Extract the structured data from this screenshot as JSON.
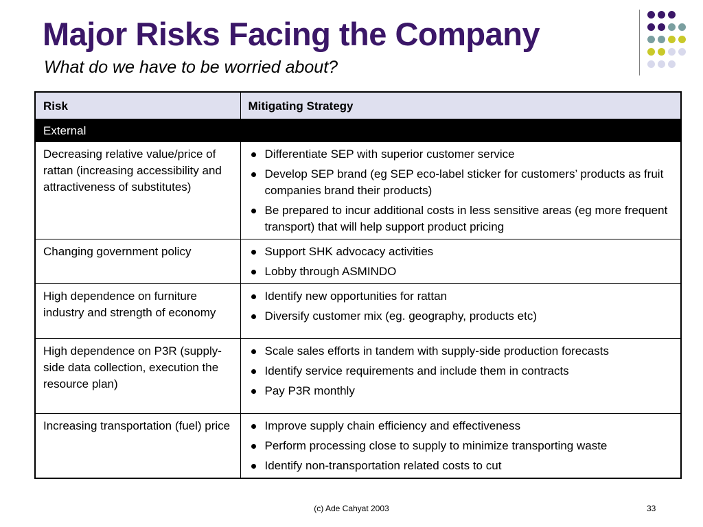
{
  "slide": {
    "title": "Major Risks Facing the Company",
    "subtitle": "What do we have to be worried about?"
  },
  "decoration": {
    "dot_colors": {
      "purple": "#3b1768",
      "teal": "#7a9fa0",
      "olive": "#c9c92a",
      "lavender": "#d8d9ec"
    }
  },
  "table": {
    "headers": [
      "Risk",
      "Mitigating Strategy"
    ],
    "section_label": "External",
    "rows": [
      {
        "risk": "Decreasing relative value/price of rattan (increasing accessibility and attractiveness of substitutes)",
        "strategies": [
          "Differentiate SEP with superior customer service",
          "Develop SEP brand (eg SEP eco-label sticker for customers’ products as fruit companies brand their products)",
          "Be prepared to incur additional costs in less sensitive areas (eg more frequent transport) that will help support product pricing"
        ]
      },
      {
        "risk": "Changing government policy",
        "strategies": [
          "Support SHK advocacy activities",
          "Lobby through ASMINDO"
        ]
      },
      {
        "risk": "High dependence on furniture industry and strength of economy",
        "strategies": [
          "Identify new opportunities for rattan",
          "Diversify customer mix (eg. geography, products etc)"
        ]
      },
      {
        "risk": "High dependence on P3R (supply-side data collection, execution the resource plan)",
        "strategies": [
          "Scale sales efforts in tandem with supply-side production forecasts",
          "Identify service requirements and include them in contracts",
          "Pay P3R monthly"
        ]
      },
      {
        "risk": "Increasing transportation (fuel) price",
        "strategies": [
          "Improve supply chain efficiency and effectiveness",
          "Perform processing close to supply to minimize transporting waste",
          "Identify non-transportation related costs to cut"
        ]
      }
    ]
  },
  "footer": {
    "credit": "(c) Ade Cahyat 2003",
    "page_number": "33"
  }
}
